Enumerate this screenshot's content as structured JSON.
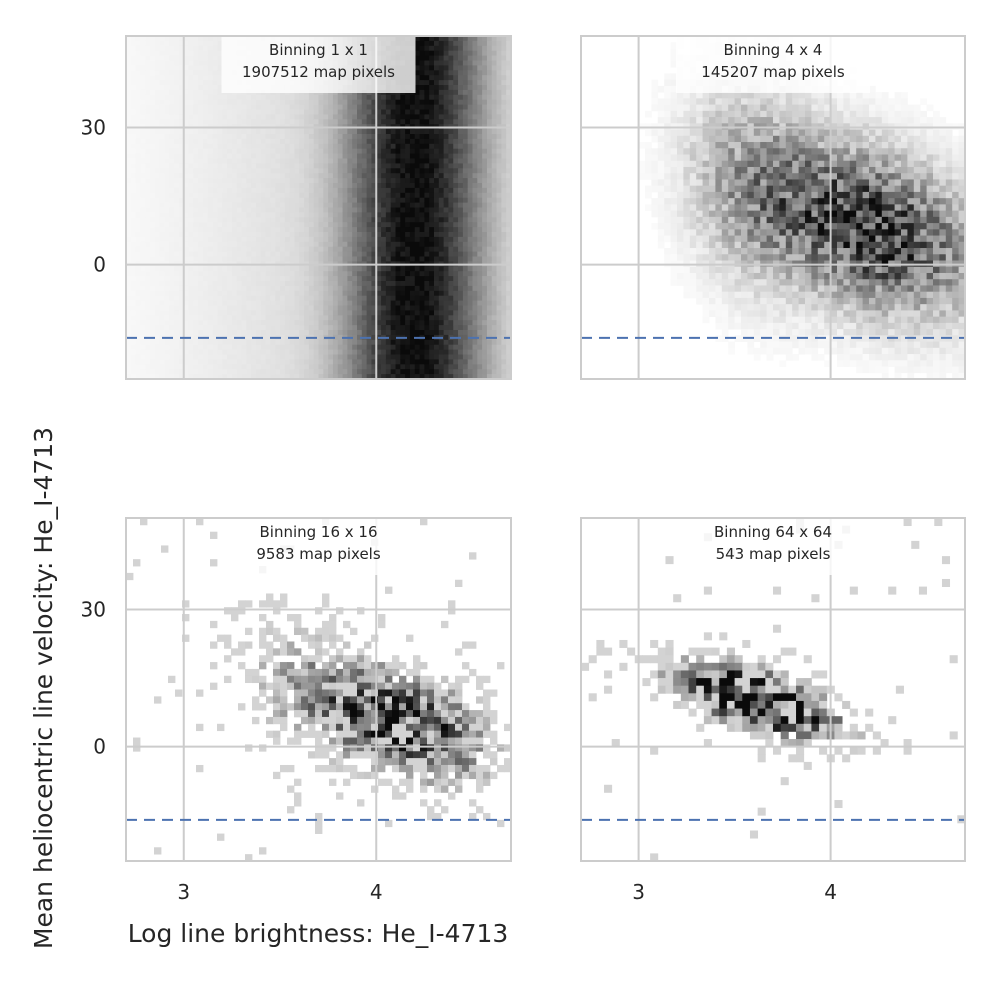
{
  "figure": {
    "xlabel": "Log line brightness: He_I-4713",
    "ylabel": "Mean heliocentric line velocity: He_I-4713"
  },
  "chart_data": [
    {
      "type": "heatmap",
      "title": "Binning 1 x 1",
      "subtitle": "1907512 map pixels",
      "xlim": [
        2.7,
        4.7
      ],
      "ylim": [
        -25,
        50
      ],
      "xticks": [
        3,
        4
      ],
      "yticks": [
        0,
        30
      ],
      "reference_line_y": -16,
      "grid": true,
      "density_peak": {
        "x": 4.2,
        "y": 5
      },
      "colormap": "greys"
    },
    {
      "type": "heatmap",
      "title": "Binning 4 x 4",
      "subtitle": "145207 map pixels",
      "xlim": [
        2.7,
        4.7
      ],
      "ylim": [
        -25,
        50
      ],
      "xticks": [
        3,
        4
      ],
      "yticks": [
        0,
        30
      ],
      "reference_line_y": -16,
      "grid": true,
      "density_peak": {
        "x": 4.2,
        "y": 8
      },
      "colormap": "greys"
    },
    {
      "type": "heatmap",
      "title": "Binning 16 x 16",
      "subtitle": "9583 map pixels",
      "xlim": [
        2.7,
        4.7
      ],
      "ylim": [
        -25,
        50
      ],
      "xticks": [
        3,
        4
      ],
      "yticks": [
        0,
        30
      ],
      "reference_line_y": -16,
      "grid": true,
      "density_peak": {
        "x": 4.15,
        "y": 5
      },
      "colormap": "greys"
    },
    {
      "type": "heatmap",
      "title": "Binning 64 x 64",
      "subtitle": "543 map pixels",
      "xlim": [
        2.7,
        4.7
      ],
      "ylim": [
        -25,
        50
      ],
      "xticks": [
        3,
        4
      ],
      "yticks": [
        0,
        30
      ],
      "reference_line_y": -16,
      "grid": true,
      "density_peak": {
        "x": 3.6,
        "y": 10
      },
      "colormap": "greys"
    }
  ]
}
